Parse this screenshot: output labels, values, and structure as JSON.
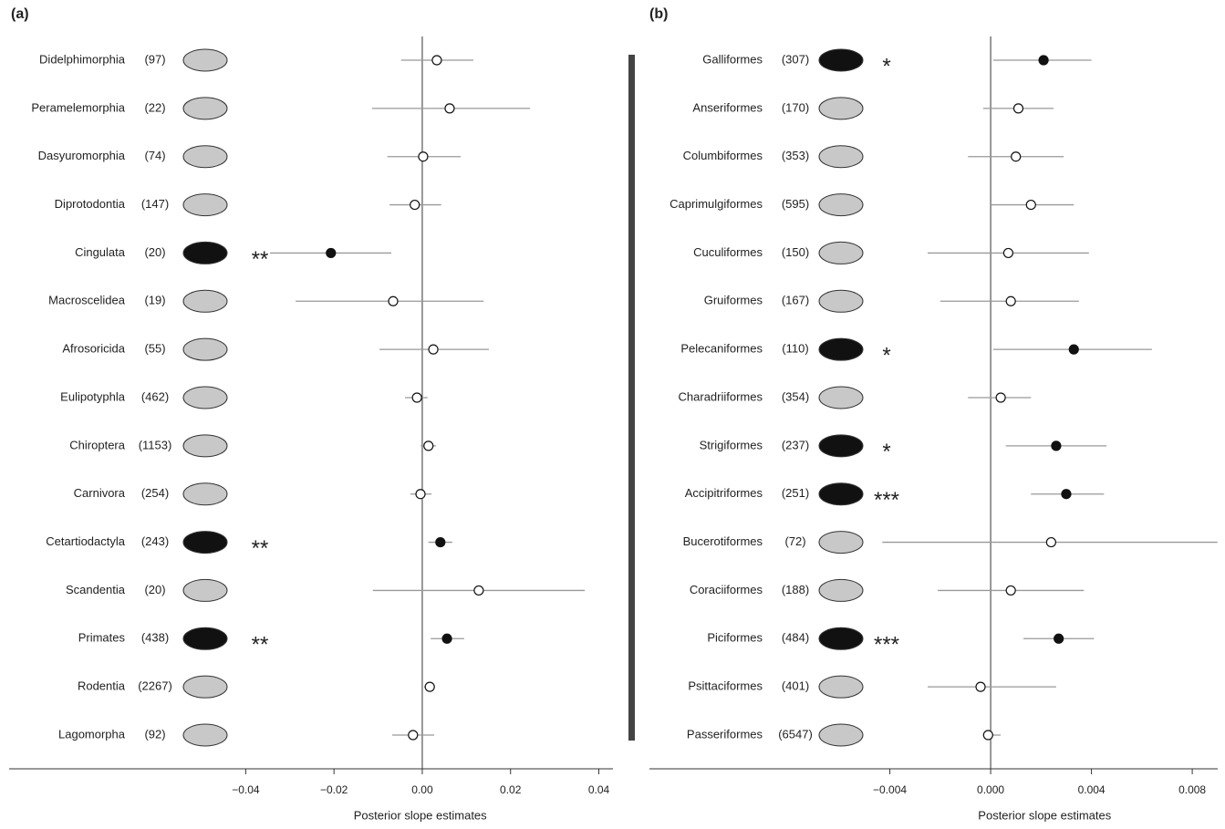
{
  "chart_data": [
    {
      "type": "forest",
      "title": "(a)",
      "x_label": "Posterior slope estimates",
      "categories": [
        "Didelphimorphia",
        "Peramelemorphia",
        "Dasyuromorphia",
        "Diprotodontia",
        "Cingulata",
        "Macroscelidea",
        "Afrosoricida",
        "Eulipotyphla",
        "Chiroptera",
        "Carnivora",
        "Cetartiodactyla",
        "Scandentia",
        "Primates",
        "Rodentia",
        "Lagomorpha"
      ],
      "counts": [
        "(97)",
        "(22)",
        "(74)",
        "(147)",
        "(20)",
        "(19)",
        "(55)",
        "(462)",
        "(1153)",
        "(254)",
        "(243)",
        "(20)",
        "(438)",
        "(2267)",
        "(92)"
      ],
      "values": [
        0.0033,
        0.0062,
        0.0002,
        -0.0017,
        -0.0207,
        -0.0066,
        0.0025,
        -0.0012,
        0.0014,
        -0.0004,
        0.0041,
        0.0128,
        0.0056,
        0.0017,
        -0.0021
      ],
      "lower": [
        -0.0048,
        -0.0114,
        -0.0079,
        -0.0074,
        -0.0345,
        -0.0287,
        -0.0097,
        -0.0039,
        -0.0004,
        -0.0027,
        0.0014,
        -0.0112,
        0.0019,
        0.0004,
        -0.0068
      ],
      "upper": [
        0.0116,
        0.0244,
        0.0087,
        0.0043,
        -0.007,
        0.0139,
        0.0151,
        0.0012,
        0.0031,
        0.0021,
        0.0068,
        0.0368,
        0.0095,
        0.0029,
        0.0027
      ],
      "significance": [
        null,
        null,
        null,
        null,
        "**",
        null,
        null,
        null,
        null,
        null,
        "**",
        null,
        "**",
        null,
        null
      ],
      "xlim": [
        -0.0936,
        0.0432
      ],
      "xticks": [
        {
          "value": -0.04,
          "label": "−0.04"
        },
        {
          "value": -0.02,
          "label": "−0.02"
        },
        {
          "value": 0,
          "label": "0.00"
        },
        0.02,
        0.04
      ],
      "reference_line": 0,
      "color": "#999999"
    },
    {
      "type": "forest",
      "title": "(b)",
      "x_label": "Posterior slope estimates",
      "categories": [
        "Galliformes",
        "Anseriformes",
        "Columbiformes",
        "Caprimulgiformes",
        "Cuculiformes",
        "Gruiformes",
        "Pelecaniformes",
        "Charadriiformes",
        "Strigiformes",
        "Accipitriformes",
        "Bucerotiformes",
        "Coraciiformes",
        "Piciformes",
        "Psittaciformes",
        "Passeriformes"
      ],
      "counts": [
        "(307)",
        "(170)",
        "(353)",
        "(595)",
        "(150)",
        "(167)",
        "(110)",
        "(354)",
        "(237)",
        "(251)",
        "(72)",
        "(188)",
        "(484)",
        "(401)",
        "(6547)"
      ],
      "values": [
        0.0021,
        0.0011,
        0.001,
        0.0016,
        0.0007,
        0.0008,
        0.0033,
        0.0004,
        0.0026,
        0.003,
        0.0024,
        0.0008,
        0.0027,
        -0.0004,
        -0.0001
      ],
      "lower": [
        0.0001,
        -0.0003,
        -0.0009,
        0.0,
        -0.0025,
        -0.002,
        0.0001,
        -0.0009,
        0.0006,
        0.0016,
        -0.0043,
        -0.0021,
        0.0013,
        -0.0025,
        -0.0003
      ],
      "upper": [
        0.004,
        0.0025,
        0.0029,
        0.0033,
        0.0039,
        0.0035,
        0.0064,
        0.0016,
        0.0046,
        0.0045,
        0.009,
        0.0037,
        0.0041,
        0.0026,
        0.0004
      ],
      "significance": [
        "*",
        null,
        null,
        null,
        null,
        null,
        "*",
        null,
        "*",
        "***",
        null,
        null,
        "***",
        null,
        null
      ],
      "xlim": [
        -0.01354,
        0.00901
      ],
      "xticks": [
        {
          "value": -0.004,
          "label": "−0.004"
        },
        {
          "value": 0,
          "label": "0.000"
        },
        0.004,
        0.008
      ],
      "reference_line": 0,
      "color": "#999999"
    }
  ]
}
